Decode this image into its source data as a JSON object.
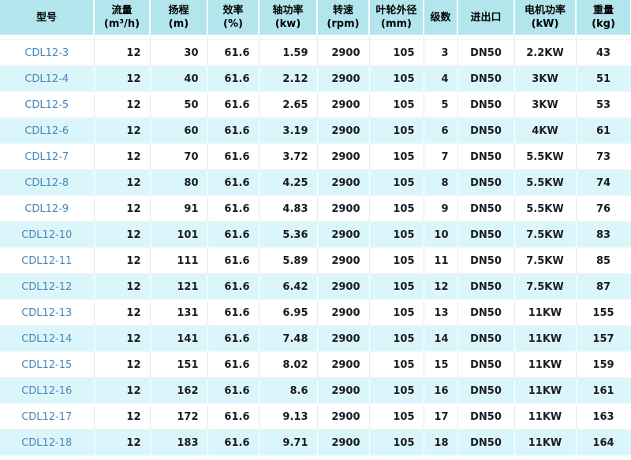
{
  "colors": {
    "header_bg": "#b2e5ec",
    "row_alt_bg": "#daf6fb",
    "model_text": "#4a87b9",
    "body_text": "#1b1b24"
  },
  "table": {
    "columns": [
      {
        "key": "model",
        "label": "型号",
        "unit": "",
        "align": "center"
      },
      {
        "key": "flow",
        "label": "流量",
        "unit": "(m³/h)",
        "align": "right"
      },
      {
        "key": "head",
        "label": "扬程",
        "unit": "(m)",
        "align": "right"
      },
      {
        "key": "efficiency",
        "label": "效率",
        "unit": "(%)",
        "align": "right"
      },
      {
        "key": "shaft-power",
        "label": "轴功率",
        "unit": "(kw)",
        "align": "right"
      },
      {
        "key": "speed",
        "label": "转速",
        "unit": "(rpm)",
        "align": "right"
      },
      {
        "key": "impeller-diameter",
        "label": "叶轮外径",
        "unit": "(mm)",
        "align": "right"
      },
      {
        "key": "stages",
        "label": "级数",
        "unit": "",
        "align": "right"
      },
      {
        "key": "ports",
        "label": "进出口",
        "unit": "",
        "align": "center"
      },
      {
        "key": "motor-power",
        "label": "电机功率",
        "unit": "(kW)",
        "align": "center"
      },
      {
        "key": "weight",
        "label": "重量",
        "unit": "(kg)",
        "align": "center"
      }
    ],
    "rows": [
      [
        "CDL12-3",
        "12",
        "30",
        "61.6",
        "1.59",
        "2900",
        "105",
        "3",
        "DN50",
        "2.2KW",
        "43"
      ],
      [
        "CDL12-4",
        "12",
        "40",
        "61.6",
        "2.12",
        "2900",
        "105",
        "4",
        "DN50",
        "3KW",
        "51"
      ],
      [
        "CDL12-5",
        "12",
        "50",
        "61.6",
        "2.65",
        "2900",
        "105",
        "5",
        "DN50",
        "3KW",
        "53"
      ],
      [
        "CDL12-6",
        "12",
        "60",
        "61.6",
        "3.19",
        "2900",
        "105",
        "6",
        "DN50",
        "4KW",
        "61"
      ],
      [
        "CDL12-7",
        "12",
        "70",
        "61.6",
        "3.72",
        "2900",
        "105",
        "7",
        "DN50",
        "5.5KW",
        "73"
      ],
      [
        "CDL12-8",
        "12",
        "80",
        "61.6",
        "4.25",
        "2900",
        "105",
        "8",
        "DN50",
        "5.5KW",
        "74"
      ],
      [
        "CDL12-9",
        "12",
        "91",
        "61.6",
        "4.83",
        "2900",
        "105",
        "9",
        "DN50",
        "5.5KW",
        "76"
      ],
      [
        "CDL12-10",
        "12",
        "101",
        "61.6",
        "5.36",
        "2900",
        "105",
        "10",
        "DN50",
        "7.5KW",
        "83"
      ],
      [
        "CDL12-11",
        "12",
        "111",
        "61.6",
        "5.89",
        "2900",
        "105",
        "11",
        "DN50",
        "7.5KW",
        "85"
      ],
      [
        "CDL12-12",
        "12",
        "121",
        "61.6",
        "6.42",
        "2900",
        "105",
        "12",
        "DN50",
        "7.5KW",
        "87"
      ],
      [
        "CDL12-13",
        "12",
        "131",
        "61.6",
        "6.95",
        "2900",
        "105",
        "13",
        "DN50",
        "11KW",
        "155"
      ],
      [
        "CDL12-14",
        "12",
        "141",
        "61.6",
        "7.48",
        "2900",
        "105",
        "14",
        "DN50",
        "11KW",
        "157"
      ],
      [
        "CDL12-15",
        "12",
        "151",
        "61.6",
        "8.02",
        "2900",
        "105",
        "15",
        "DN50",
        "11KW",
        "159"
      ],
      [
        "CDL12-16",
        "12",
        "162",
        "61.6",
        "8.6",
        "2900",
        "105",
        "16",
        "DN50",
        "11KW",
        "161"
      ],
      [
        "CDL12-17",
        "12",
        "172",
        "61.6",
        "9.13",
        "2900",
        "105",
        "17",
        "DN50",
        "11KW",
        "163"
      ],
      [
        "CDL12-18",
        "12",
        "183",
        "61.6",
        "9.71",
        "2900",
        "105",
        "18",
        "DN50",
        "11KW",
        "164"
      ]
    ]
  }
}
